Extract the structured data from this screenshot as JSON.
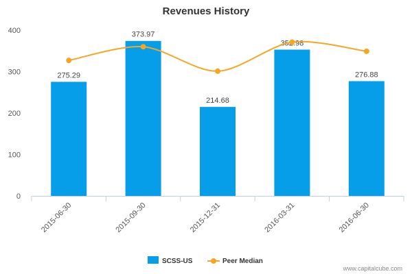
{
  "chart_data": {
    "type": "bar",
    "title": "Revenues History",
    "categories": [
      "2015-06-30",
      "2015-09-30",
      "2015-12-31",
      "2016-03-31",
      "2016-06-30"
    ],
    "series": [
      {
        "name": "SCSS-US",
        "type": "bar",
        "color": "#069ee8",
        "values": [
          275.29,
          373.97,
          214.68,
          352.98,
          276.88
        ],
        "labels": [
          "275.29",
          "373.97",
          "214.68",
          "352.98",
          "276.88"
        ]
      },
      {
        "name": "Peer Median",
        "type": "line",
        "color": "#f5a623",
        "values": [
          327,
          360,
          301,
          371,
          349
        ]
      }
    ],
    "yticks": [
      "0",
      "100",
      "200",
      "300",
      "400"
    ],
    "ylim": [
      0,
      400
    ],
    "grid": false,
    "legend": "bottom-center"
  },
  "watermark": "www.capitalcube.com"
}
